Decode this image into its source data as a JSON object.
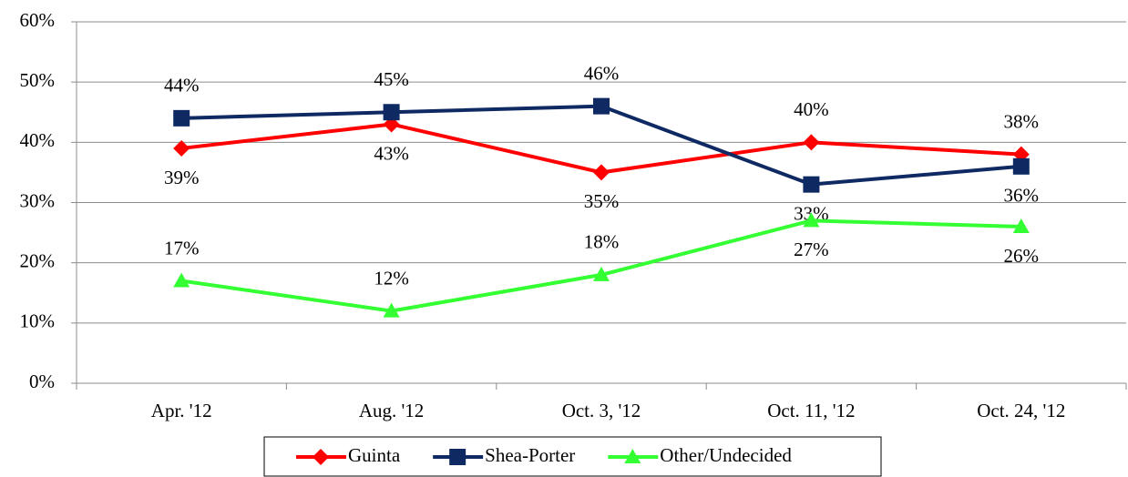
{
  "chart_data": {
    "type": "line",
    "categories": [
      "Apr. '12",
      "Aug. '12",
      "Oct. 3, '12",
      "Oct. 11, '12",
      "Oct. 24, '12"
    ],
    "series": [
      {
        "name": "Guinta",
        "color": "#ff0000",
        "marker": "diamond",
        "values": [
          39,
          43,
          35,
          40,
          38
        ],
        "value_labels": [
          "39%",
          "43%",
          "35%",
          "40%",
          "38%"
        ]
      },
      {
        "name": "Shea-Porter",
        "color": "#0f2a62",
        "marker": "square",
        "values": [
          44,
          45,
          46,
          33,
          36
        ],
        "value_labels": [
          "44%",
          "45%",
          "46%",
          "33%",
          "36%"
        ]
      },
      {
        "name": "Other/Undecided",
        "color": "#33ff33",
        "marker": "triangle",
        "values": [
          17,
          12,
          18,
          27,
          26
        ],
        "value_labels": [
          "17%",
          "12%",
          "18%",
          "27%",
          "26%"
        ]
      }
    ],
    "ylim": [
      0,
      60
    ],
    "yticks": [
      {
        "value": 0,
        "label": "0%"
      },
      {
        "value": 10,
        "label": "10%"
      },
      {
        "value": 20,
        "label": "20%"
      },
      {
        "value": 30,
        "label": "30%"
      },
      {
        "value": 40,
        "label": "40%"
      },
      {
        "value": 50,
        "label": "50%"
      },
      {
        "value": 60,
        "label": "60%"
      }
    ],
    "grid": true,
    "legend": "bottom"
  }
}
